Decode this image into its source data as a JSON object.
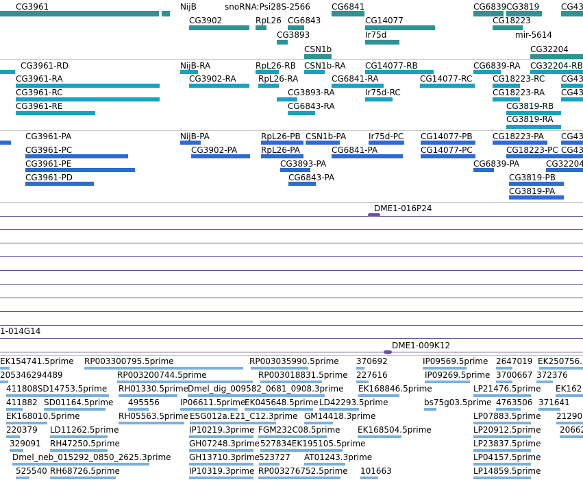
{
  "colors": {
    "gene": "#2e9393",
    "transcript": "#1aa0c0",
    "protein": "#2d6bd0",
    "clone": "#6a4fb0",
    "est": "#7cb0d9",
    "separator": "#c8c8c8",
    "hline": "#5a4a8e"
  },
  "tracks": {
    "genes": [
      {
        "label": "CG3961"
      },
      {
        "label": "NijB"
      },
      {
        "label": "snoRNA:Psi28S-2566"
      },
      {
        "label": "CG6841"
      },
      {
        "label": "CG6839"
      },
      {
        "label": "CG3819"
      },
      {
        "label": "CG43"
      },
      {
        "label": "CG3902"
      },
      {
        "label": "RpL26"
      },
      {
        "label": "CG6843"
      },
      {
        "label": "CG14077"
      },
      {
        "label": "CG18223"
      },
      {
        "label": "CG3893"
      },
      {
        "label": "Ir75d"
      },
      {
        "label": "mir-5614"
      },
      {
        "label": "CSN1b"
      },
      {
        "label": "CG32204"
      }
    ],
    "transcripts": [
      {
        "label": "CG3961-RD"
      },
      {
        "label": "NijB-RA"
      },
      {
        "label": "RpL26-RB"
      },
      {
        "label": "CSN1b-RA"
      },
      {
        "label": "CG14077-RB"
      },
      {
        "label": "CG6839-RA"
      },
      {
        "label": "CG32204-RB"
      },
      {
        "label": "CG3961-RA"
      },
      {
        "label": "CG3902-RA"
      },
      {
        "label": "RpL26-RA"
      },
      {
        "label": "CG6841-RA"
      },
      {
        "label": "CG14077-RC"
      },
      {
        "label": "CG18223-RC"
      },
      {
        "label": "CG43"
      },
      {
        "label": "CG3961-RC"
      },
      {
        "label": "CG3893-RA"
      },
      {
        "label": "Ir75d-RC"
      },
      {
        "label": "CG18223-RA"
      },
      {
        "label": "CG43"
      },
      {
        "label": "CG3961-RE"
      },
      {
        "label": "CG6843-RA"
      },
      {
        "label": "CG3819-RB"
      },
      {
        "label": "CG3819-RA"
      }
    ],
    "proteins": [
      {
        "label": "CG3961-PA"
      },
      {
        "label": "NijB-PA"
      },
      {
        "label": "RpL26-PB"
      },
      {
        "label": "CSN1b-PA"
      },
      {
        "label": "Ir75d-PC"
      },
      {
        "label": "CG14077-PB"
      },
      {
        "label": "CG18223-PA"
      },
      {
        "label": "CG43"
      },
      {
        "label": "CG3961-PC"
      },
      {
        "label": "CG3902-PA"
      },
      {
        "label": "RpL26-PA"
      },
      {
        "label": "CG6841-PA"
      },
      {
        "label": "CG14077-PC"
      },
      {
        "label": "CG18223-PC"
      },
      {
        "label": "CG43"
      },
      {
        "label": "CG3961-PE"
      },
      {
        "label": "CG3893-PA"
      },
      {
        "label": "CG6839-PA"
      },
      {
        "label": "CG32204"
      },
      {
        "label": "CG3961-PD"
      },
      {
        "label": "CG6843-PA"
      },
      {
        "label": "CG3819-PB"
      },
      {
        "label": "CG3819-PA"
      }
    ],
    "clones": [
      {
        "label": "DME1-016P24"
      },
      {
        "label": "1-014G14"
      },
      {
        "label": "DME1-009K12"
      }
    ],
    "ests": [
      {
        "label": "EK154741.5prime"
      },
      {
        "label": "RP003300795.5prime"
      },
      {
        "label": "RP003035990.5prime"
      },
      {
        "label": "370692"
      },
      {
        "label": "IP09569.5prime"
      },
      {
        "label": "2647019"
      },
      {
        "label": "EK250756."
      },
      {
        "label": "205346294489"
      },
      {
        "label": "RP003200744.5prime"
      },
      {
        "label": "RP003018831.5prime"
      },
      {
        "label": "227616"
      },
      {
        "label": "IP09269.5prime"
      },
      {
        "label": "3700667"
      },
      {
        "label": "372376"
      },
      {
        "label": "411808SD14753.5prime"
      },
      {
        "label": "RH01330.5prime"
      },
      {
        "label": "Dmel_dig_009582_0681_0908.3prime"
      },
      {
        "label": "EK168846.5prime"
      },
      {
        "label": "LP21476.5prime"
      },
      {
        "label": "EK162"
      },
      {
        "label": "411882"
      },
      {
        "label": "SD01164.5prime"
      },
      {
        "label": "495556"
      },
      {
        "label": "IP06611.5prime"
      },
      {
        "label": "EK045648.5prime"
      },
      {
        "label": "LD42293.5prime"
      },
      {
        "label": "bs75g03.5prime"
      },
      {
        "label": "4763506"
      },
      {
        "label": "371641"
      },
      {
        "label": "EK168010.5prime"
      },
      {
        "label": "RH05563.5prime"
      },
      {
        "label": "ESG012a.E21_C12.3prime"
      },
      {
        "label": "GM14418.3prime"
      },
      {
        "label": "LP07883.5prime"
      },
      {
        "label": "21290"
      },
      {
        "label": "220379"
      },
      {
        "label": "LD11262.5prime"
      },
      {
        "label": "IP10219.3prime"
      },
      {
        "label": "FGM232C08.5prime"
      },
      {
        "label": "EK168504.5prime"
      },
      {
        "label": "LP20912.5prime"
      },
      {
        "label": "20662"
      },
      {
        "label": "329091"
      },
      {
        "label": "RH47250.5prime"
      },
      {
        "label": "GH07248.3prime"
      },
      {
        "label": "527834EK195105.5prime"
      },
      {
        "label": "LP23837.5prime"
      },
      {
        "label": "Dmel_neb_015292_0850_2625.3prime"
      },
      {
        "label": "GH13710.3prime"
      },
      {
        "label": "523727"
      },
      {
        "label": "AT01243.3prime"
      },
      {
        "label": "LP04157.5prime"
      },
      {
        "label": "525540"
      },
      {
        "label": "RH68726.5prime"
      },
      {
        "label": "IP10319.3prime"
      },
      {
        "label": "RP003276752.5prime"
      },
      {
        "label": "101663"
      },
      {
        "label": "LP14859.5prime"
      }
    ]
  }
}
